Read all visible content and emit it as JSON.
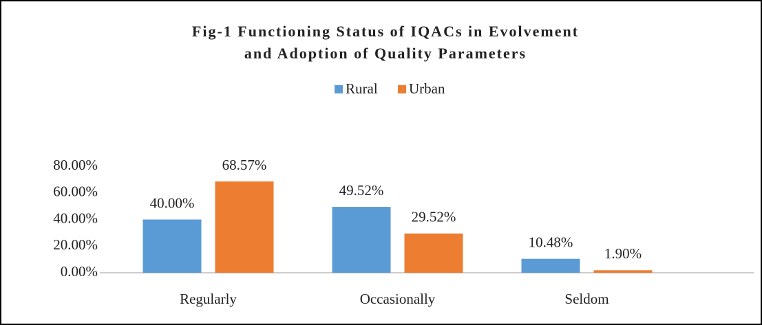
{
  "chart_data": {
    "type": "bar",
    "title": [
      "Fig-1 Functioning Status of IQACs in Evolvement",
      "and Adoption of Quality Parameters"
    ],
    "categories": [
      "Regularly",
      "Occasionally",
      "Seldom"
    ],
    "series": [
      {
        "name": "Rural",
        "color": "#5b9bd5",
        "values": [
          40.0,
          49.52,
          10.48
        ],
        "value_labels": [
          "40.00%",
          "49.52%",
          "10.48%"
        ]
      },
      {
        "name": "Urban",
        "color": "#ed7d31",
        "values": [
          68.57,
          29.52,
          1.9
        ],
        "value_labels": [
          "68.57%",
          "29.52%",
          "1.90%"
        ]
      }
    ],
    "ylim": [
      0,
      80
    ],
    "yticks": [
      {
        "value": 0,
        "label": "0.00%"
      },
      {
        "value": 20,
        "label": "20.00%"
      },
      {
        "value": 40,
        "label": "40.00%"
      },
      {
        "value": 60,
        "label": "60.00%"
      },
      {
        "value": 80,
        "label": "80.00%"
      }
    ],
    "legend": "top",
    "grid": false
  }
}
